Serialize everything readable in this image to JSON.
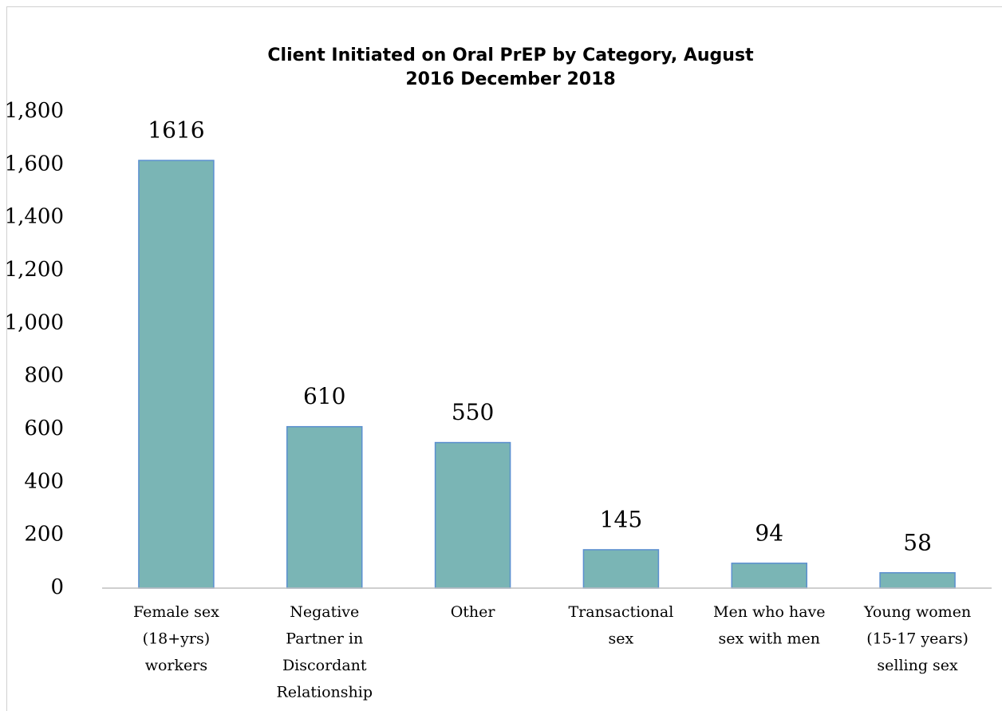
{
  "chart_data": {
    "type": "bar",
    "title": [
      "Client Initiated on Oral PrEP by Category, August",
      "2016 December 2018"
    ],
    "categories": [
      [
        "Female sex",
        "(18+yrs)",
        "workers"
      ],
      [
        "Negative",
        "Partner in",
        "Discordant",
        "Relationship"
      ],
      [
        "Other"
      ],
      [
        "Transactional",
        "sex"
      ],
      [
        "Men who have",
        "sex with men"
      ],
      [
        "Young women",
        "(15-17 years)",
        "selling sex"
      ]
    ],
    "values": [
      1616,
      610,
      550,
      145,
      94,
      58
    ],
    "color": "#7ab5b5",
    "edge_color": "#5b8fd0",
    "ylim": [
      0,
      1800
    ],
    "yticks": [
      0,
      200,
      400,
      600,
      800,
      {
        "value": 1000,
        "label": "1,000"
      },
      {
        "value": 1200,
        "label": "1,200"
      },
      {
        "value": 1400,
        "label": "1,400"
      },
      {
        "value": 1600,
        "label": "1,600"
      },
      {
        "value": 1800,
        "label": "1,800"
      }
    ],
    "grid": false
  }
}
